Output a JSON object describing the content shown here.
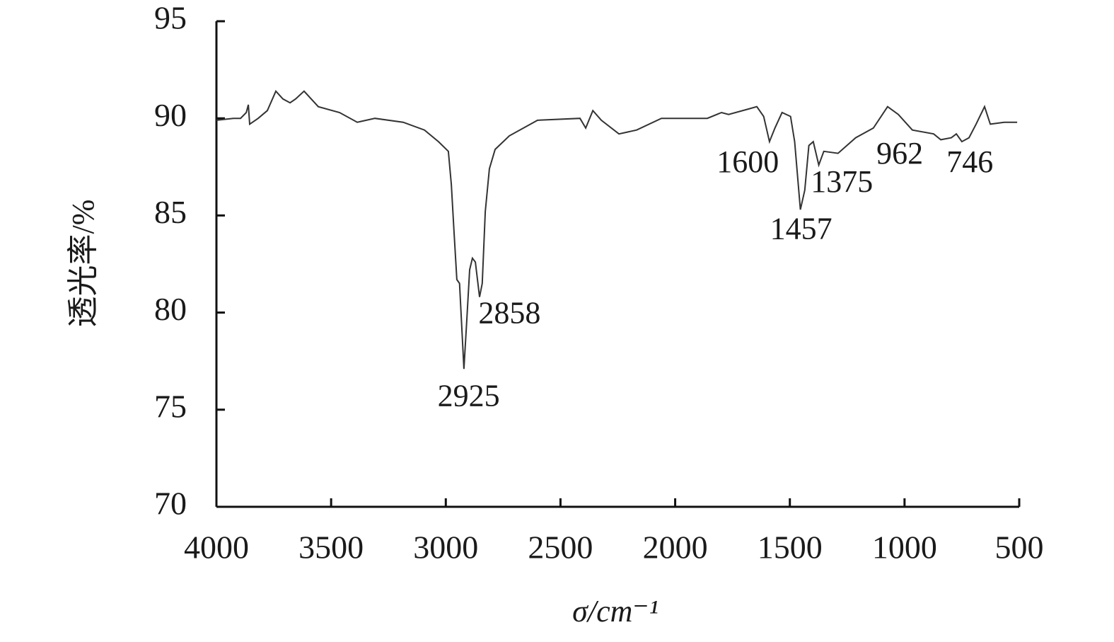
{
  "chart_data": {
    "type": "line",
    "xlabel": "σ/cm⁻¹",
    "ylabel": "透光率/%",
    "xlim": [
      4000,
      500
    ],
    "ylim": [
      70,
      95
    ],
    "xticks": [
      4000,
      3500,
      3000,
      2500,
      2000,
      1500,
      1000,
      500
    ],
    "yticks": [
      70,
      75,
      80,
      85,
      90,
      95
    ],
    "color": "#333333",
    "x": [
      4000,
      3926,
      3895,
      3870,
      3861,
      3855,
      3818,
      3778,
      3741,
      3710,
      3679,
      3655,
      3618,
      3556,
      3463,
      3386,
      3309,
      3186,
      3093,
      3032,
      2989,
      2976,
      2964,
      2952,
      2940,
      2921,
      2908,
      2896,
      2884,
      2871,
      2853,
      2841,
      2828,
      2810,
      2785,
      2723,
      2600,
      2415,
      2390,
      2359,
      2322,
      2245,
      2168,
      2060,
      1860,
      1798,
      1767,
      1675,
      1644,
      1614,
      1589,
      1565,
      1534,
      1497,
      1479,
      1454,
      1435,
      1417,
      1398,
      1374,
      1352,
      1290,
      1213,
      1136,
      1074,
      1027,
      966,
      873,
      842,
      796,
      774,
      750,
      719,
      688,
      651,
      626,
      565,
      509
    ],
    "values": [
      89.9,
      90.0,
      90.0,
      90.3,
      90.7,
      89.7,
      90.0,
      90.4,
      91.4,
      91.0,
      90.8,
      91.0,
      91.4,
      90.6,
      90.3,
      89.8,
      90.0,
      89.8,
      89.4,
      88.8,
      88.3,
      86.6,
      84.1,
      81.7,
      81.5,
      77.1,
      79.7,
      82.2,
      82.8,
      82.6,
      80.8,
      81.5,
      85.2,
      87.4,
      88.4,
      89.1,
      89.9,
      90.0,
      89.5,
      90.4,
      89.9,
      89.2,
      89.4,
      90.0,
      90.0,
      90.3,
      90.2,
      90.5,
      90.6,
      90.1,
      88.8,
      89.5,
      90.3,
      90.1,
      88.8,
      85.3,
      86.3,
      88.6,
      88.8,
      87.6,
      88.3,
      88.2,
      89.0,
      89.5,
      90.6,
      90.2,
      89.4,
      89.2,
      88.9,
      89.0,
      89.2,
      88.8,
      89.0,
      89.7,
      90.6,
      89.7,
      89.8,
      89.8
    ],
    "annotations": [
      {
        "text": "2925",
        "x": 2925,
        "y": 77.1
      },
      {
        "text": "2858",
        "x": 2858,
        "y": 80.8
      },
      {
        "text": "1600",
        "x": 1600,
        "y": 88.8
      },
      {
        "text": "1457",
        "x": 1457,
        "y": 85.3
      },
      {
        "text": "1375",
        "x": 1375,
        "y": 87.6
      },
      {
        "text": "962",
        "x": 962,
        "y": 89.4
      },
      {
        "text": "746",
        "x": 746,
        "y": 88.8
      }
    ]
  }
}
